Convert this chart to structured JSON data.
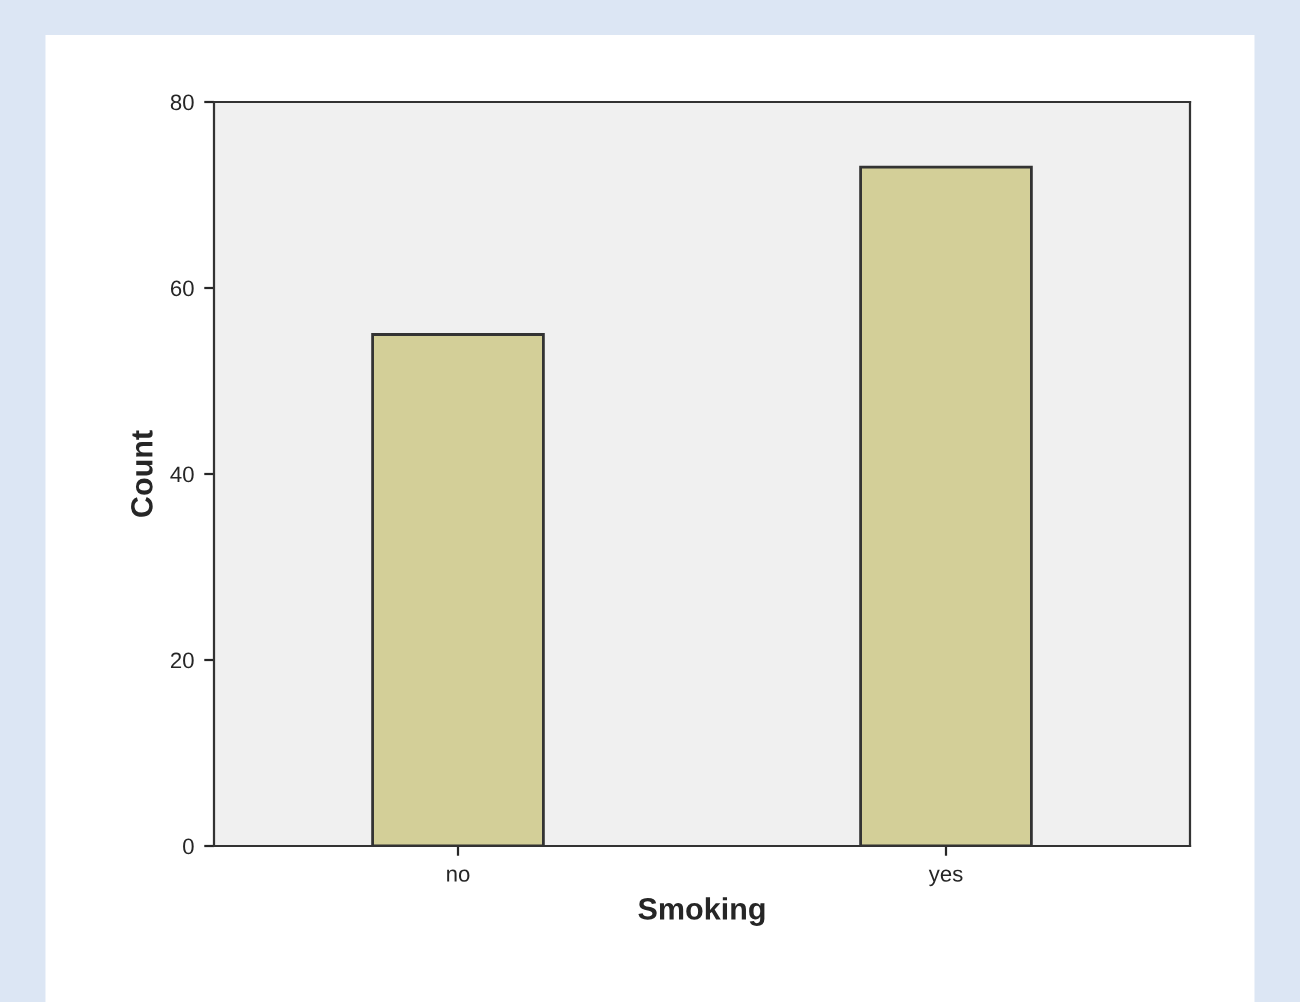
{
  "chart_data": {
    "type": "bar",
    "xlabel": "Smoking",
    "ylabel": "Count",
    "categories": [
      "no",
      "yes"
    ],
    "series": [
      {
        "color": "#d3cf98",
        "values": [
          55,
          73
        ]
      }
    ],
    "ylim": [
      0,
      80
    ],
    "yticks": [
      0,
      20,
      40,
      60,
      80
    ],
    "grid": false,
    "legend": false
  }
}
